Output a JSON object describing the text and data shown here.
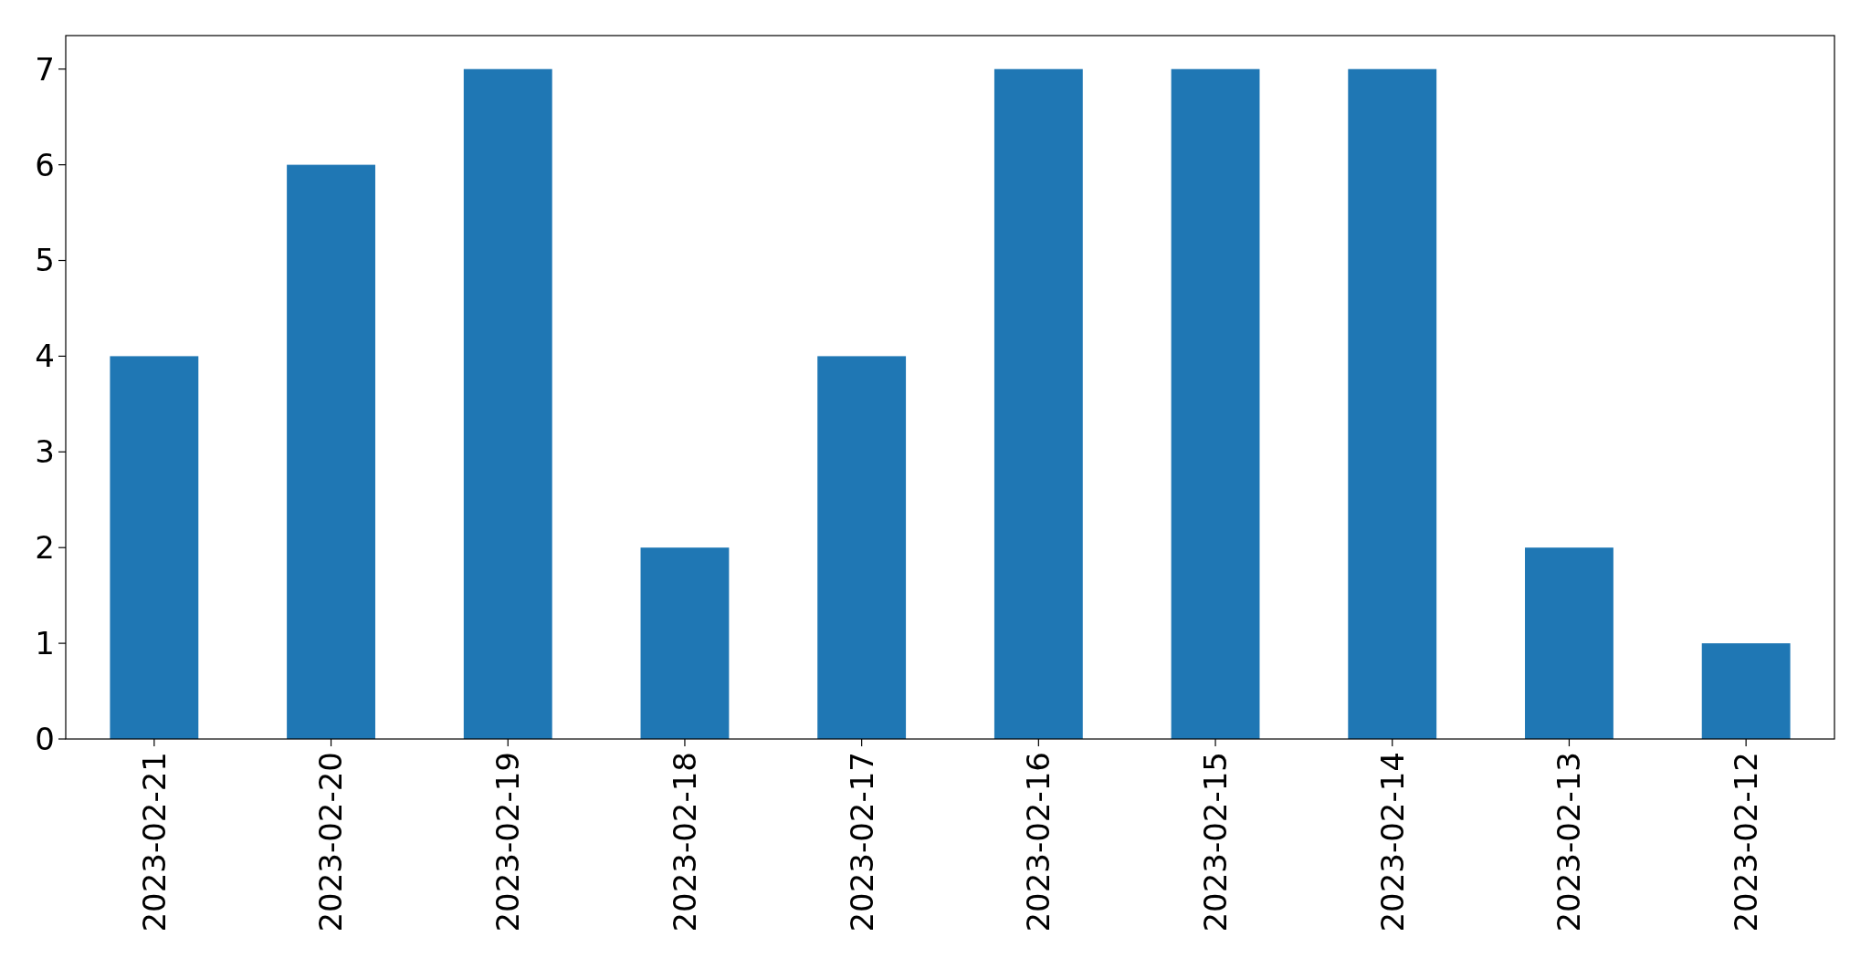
{
  "chart_data": {
    "type": "bar",
    "categories": [
      "2023-02-21",
      "2023-02-20",
      "2023-02-19",
      "2023-02-18",
      "2023-02-17",
      "2023-02-16",
      "2023-02-15",
      "2023-02-14",
      "2023-02-13",
      "2023-02-12"
    ],
    "values": [
      4,
      6,
      7,
      2,
      4,
      7,
      7,
      7,
      2,
      1
    ],
    "color": "#1f77b4",
    "ylim": [
      0,
      7.35
    ],
    "yticks": [
      0,
      1,
      2,
      3,
      4,
      5,
      6,
      7
    ]
  }
}
